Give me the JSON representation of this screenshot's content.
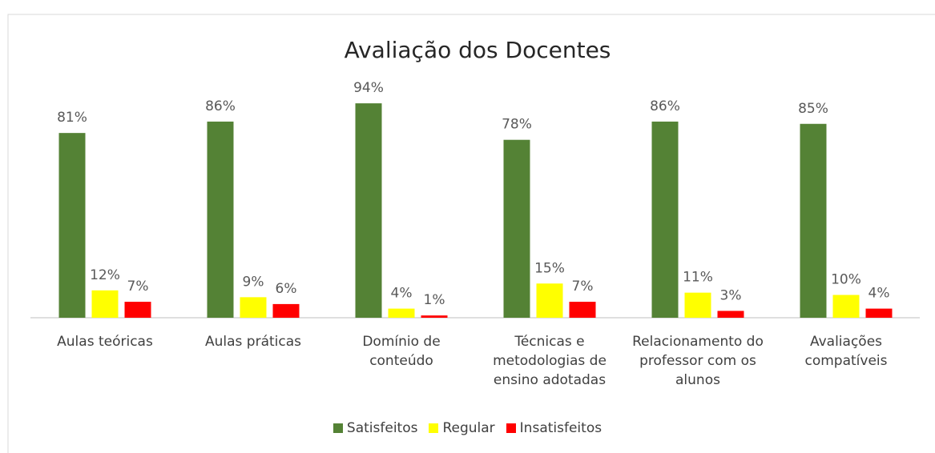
{
  "chart_data": {
    "type": "bar",
    "title": "Avaliação dos Docentes",
    "categories": [
      "Aulas teóricas",
      "Aulas práticas",
      "Domínio de conteúdo",
      "Técnicas e metodologias de ensino adotadas",
      "Relacionamento do professor com os alunos",
      "Avaliações compatíveis"
    ],
    "series": [
      {
        "name": "Satisfeitos",
        "color": "#548235",
        "values": [
          81,
          86,
          94,
          78,
          86,
          85
        ],
        "value_labels": [
          "81%",
          "86%",
          "94%",
          "78%",
          "86%",
          "85%"
        ]
      },
      {
        "name": "Regular",
        "color": "#ffff00",
        "values": [
          12,
          9,
          4,
          15,
          11,
          10
        ],
        "value_labels": [
          "12%",
          "9%",
          "4%",
          "15%",
          "11%",
          "10%"
        ]
      },
      {
        "name": "Insatisfeitos",
        "color": "#ff0000",
        "values": [
          7,
          6,
          1,
          7,
          3,
          4
        ],
        "value_labels": [
          "7%",
          "6%",
          "1%",
          "7%",
          "3%",
          "4%"
        ]
      }
    ],
    "legend": "bottom"
  }
}
